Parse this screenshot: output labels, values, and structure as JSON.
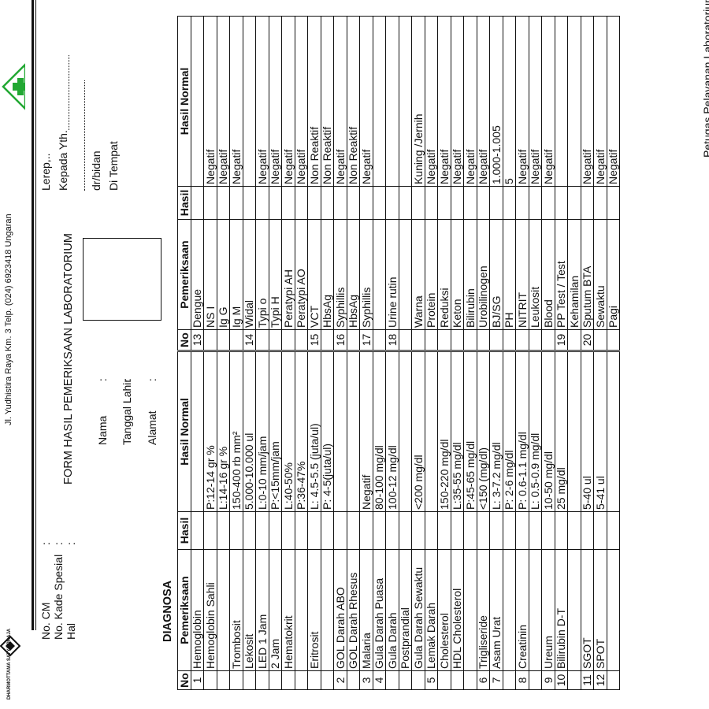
{
  "header": {
    "address": "Jl. Yudhistira Raya Km. 3 Telp. (024) 6923418 Ungaran",
    "org_name": "DHARMOTTAMA SATYA PRAJA",
    "form_title": "FORM HASIL PEMERIKSAAN LABORATORIUM",
    "no_cm": "No. CM",
    "kode_spesial": "No. Kade Spesial",
    "hal": "Hal",
    "colon": ":",
    "nama": "Nama",
    "tanggal_lahir": "Tanggal Lahir",
    "alamat": "Alamat",
    "lerep": "Lerep,..",
    "kepada": "Kepada Yth.",
    "dr_bidan": "dr/bidan",
    "di_tempat": "Di Tempat"
  },
  "diagnosa_label": "DIAGNOSA",
  "table_headers": {
    "no": "No",
    "pemeriksaan": "Pemeriksaan",
    "hasil": "Hasil",
    "hasil_normal": "Hasil Normal"
  },
  "left_rows": [
    {
      "no": "1",
      "name": "Hemoglobin",
      "normal": ""
    },
    {
      "no": "",
      "name": "Hemoglobin Sahli",
      "normal": "P:12-14 gr %"
    },
    {
      "no": "",
      "name": "",
      "normal": "L:14-16 gr %"
    },
    {
      "no": "",
      "name": "Trombosit",
      "normal": "150-400 rb mm²"
    },
    {
      "no": "",
      "name": "Lekosit",
      "normal": "5.000-10.000 ul"
    },
    {
      "no": "",
      "name": "LED      1 Jam",
      "normal": "L:0-10 mm/jam"
    },
    {
      "no": "",
      "name": "           2 Jam",
      "normal": "P:<15mm/jam"
    },
    {
      "no": "",
      "name": "Hematokrit",
      "normal": "L:40-50%"
    },
    {
      "no": "",
      "name": "",
      "normal": "P:36-47%"
    },
    {
      "no": "",
      "name": "Eritrosit",
      "normal": "L: 4.5-5.5 (juta/ul)"
    },
    {
      "no": "",
      "name": "",
      "normal": "P: 4-5(juta/ul)"
    },
    {
      "no": "2",
      "name": "GOL Darah ABO",
      "normal": ""
    },
    {
      "no": "",
      "name": "GOL Darah Rhesus",
      "normal": ""
    },
    {
      "no": "3",
      "name": "Malaria",
      "normal": "Negatif"
    },
    {
      "no": "4",
      "name": "Gula Darah Puasa",
      "normal": "80-100 mg/dl"
    },
    {
      "no": "",
      "name": "Gula Darah",
      "normal": "100-12 mg/dl"
    },
    {
      "no": "",
      "name": "Postprandial",
      "normal": ""
    },
    {
      "no": "",
      "name": "Gula Darah Sewaktu",
      "normal": "<200 mg/dl"
    },
    {
      "no": "5",
      "name": "Lemak Darah",
      "normal": ""
    },
    {
      "no": "",
      "name": "Cholesterol",
      "normal": "150-220 mg/dl"
    },
    {
      "no": "",
      "name": "HDL Cholesterol",
      "normal": "L:35-55 mg/dl"
    },
    {
      "no": "",
      "name": "",
      "normal": "P:45-65 mg/dl"
    },
    {
      "no": "6",
      "name": "Trigliseride",
      "normal": "<150 (mg/dl)"
    },
    {
      "no": "7",
      "name": "Asam Urat",
      "normal": "L: 3-7.2 mg/dl"
    },
    {
      "no": "",
      "name": "",
      "normal": "P: 2-6 mg/dl"
    },
    {
      "no": "8",
      "name": "Creatinin",
      "normal": "P: 0.6-1.1 mg/dl"
    },
    {
      "no": "",
      "name": "",
      "normal": "L: 0.5-0.9 mg/dl"
    },
    {
      "no": "9",
      "name": "Ureum",
      "normal": "10-50 mg/dl"
    },
    {
      "no": "10",
      "name": "Bilirubin D-T",
      "normal": "25 mg/dl"
    },
    {
      "no": "",
      "name": "",
      "normal": ""
    },
    {
      "no": "11",
      "name": "SGOT",
      "normal": "5-40 ul"
    },
    {
      "no": "12",
      "name": "SPOT",
      "normal": "5-41 ul"
    },
    {
      "no": "",
      "name": "",
      "normal": ""
    }
  ],
  "right_rows": [
    {
      "no": "13",
      "name": "Dengue",
      "normal": ""
    },
    {
      "no": "",
      "name": "NS I",
      "normal": "Negatif"
    },
    {
      "no": "",
      "name": "Ig G",
      "normal": "Negatif"
    },
    {
      "no": "",
      "name": "Ig M",
      "normal": "Negatif"
    },
    {
      "no": "14",
      "name": "Widal",
      "normal": ""
    },
    {
      "no": "",
      "name": "Typi o",
      "normal": "Negatif"
    },
    {
      "no": "",
      "name": "Typi H",
      "normal": "Negatif"
    },
    {
      "no": "",
      "name": "Peratypi AH",
      "normal": "Negatif"
    },
    {
      "no": "",
      "name": "Peratypi AO",
      "normal": "Negatif"
    },
    {
      "no": "15",
      "name": "VCT",
      "normal": "Non Reaktif"
    },
    {
      "no": "",
      "name": "HbsAg",
      "normal": "Non Reaktif"
    },
    {
      "no": "16",
      "name": "Syphillis",
      "normal": "Negatif"
    },
    {
      "no": "",
      "name": "HbsAg",
      "normal": "Non Reaktif"
    },
    {
      "no": "17",
      "name": "Syphillis",
      "normal": "Negatif"
    },
    {
      "no": "",
      "name": "",
      "normal": ""
    },
    {
      "no": "18",
      "name": "Urine rutin",
      "normal": ""
    },
    {
      "no": "",
      "name": "",
      "normal": ""
    },
    {
      "no": "",
      "name": "Warna",
      "normal": "Kuning /Jernih"
    },
    {
      "no": "",
      "name": "Protein",
      "normal": "Negatif"
    },
    {
      "no": "",
      "name": "Reduksi",
      "normal": "Negatif"
    },
    {
      "no": "",
      "name": "Keton",
      "normal": "Negatif"
    },
    {
      "no": "",
      "name": "Bilirubin",
      "normal": "Negatif"
    },
    {
      "no": "",
      "name": "Urobilinogen",
      "normal": "Negatif"
    },
    {
      "no": "",
      "name": "BJ/SG",
      "normal": "1.000-1.005"
    },
    {
      "no": "",
      "name": "PH",
      "normal": "5"
    },
    {
      "no": "",
      "name": "NITRIT",
      "normal": "Negatif"
    },
    {
      "no": "",
      "name": "Leukosit",
      "normal": "Negatif"
    },
    {
      "no": "",
      "name": "Blood",
      "normal": "Negatif"
    },
    {
      "no": "19",
      "name": "PP Test / Test",
      "normal": ""
    },
    {
      "no": "",
      "name": "Kehamilan",
      "normal": ""
    },
    {
      "no": "20",
      "name": "Sputum BTA",
      "normal": "Negatif"
    },
    {
      "no": "",
      "name": "Sewaktu",
      "normal": "Negatif"
    },
    {
      "no": "",
      "name": "Pagi",
      "normal": "Negatif"
    }
  ],
  "footer": {
    "signature_label": "Petugas Pelayanan Laboratorium"
  },
  "colors": {
    "ink": "#111111",
    "logo_green": "#22a833"
  }
}
